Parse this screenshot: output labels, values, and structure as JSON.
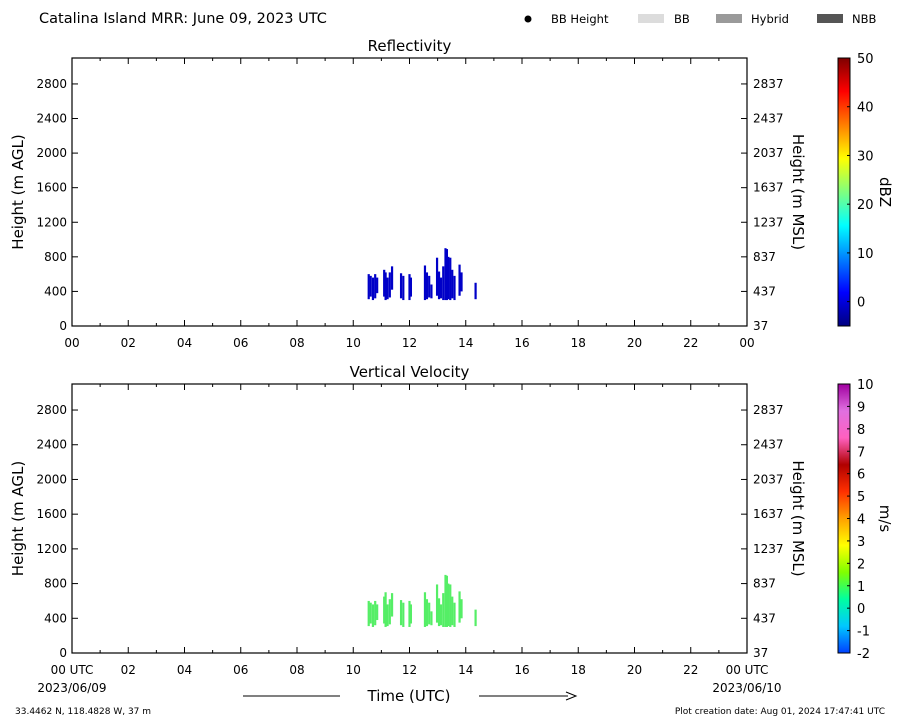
{
  "header": {
    "title": "Catalina Island MRR:  June 09, 2023 UTC",
    "legend": [
      {
        "label": "BB Height",
        "kind": "dot",
        "color": "#000000"
      },
      {
        "label": "BB",
        "kind": "swatch",
        "color": "#dcdcdc"
      },
      {
        "label": "Hybrid",
        "kind": "swatch",
        "color": "#9a9a9a"
      },
      {
        "label": "NBB",
        "kind": "swatch",
        "color": "#555555"
      }
    ]
  },
  "footer": {
    "location": "33.4462 N, 118.4828 W, 37 m",
    "creation": "Plot creation date: Aug 01, 2024 17:47:41 UTC",
    "xlabel": "Time (UTC)",
    "start_date": "2023/06/09",
    "end_date": "2023/06/10"
  },
  "chart_data": [
    {
      "type": "heatmap",
      "title": "Reflectivity",
      "ylabel": "Height (m AGL)",
      "ylabel_right": "Height (m MSL)",
      "x_ticks": [
        "00",
        "02",
        "04",
        "06",
        "08",
        "10",
        "12",
        "14",
        "16",
        "18",
        "20",
        "22",
        "00"
      ],
      "xlim": [
        0,
        24
      ],
      "ylim": [
        0,
        3100
      ],
      "y_ticks": [
        0,
        400,
        800,
        1200,
        1600,
        2000,
        2400,
        2800
      ],
      "y_ticks_right": [
        "37",
        "437",
        "837",
        "1237",
        "1637",
        "2037",
        "2437",
        "2837"
      ],
      "colorbar": {
        "label": "dBZ",
        "range": [
          -5,
          50
        ],
        "ticks": [
          "0",
          "10",
          "20",
          "30",
          "40",
          "50"
        ],
        "tick_values": [
          0,
          10,
          20,
          30,
          40,
          50
        ],
        "stops": [
          "#00007f",
          "#0000ff",
          "#007fff",
          "#00ffff",
          "#7fff7f",
          "#ffff00",
          "#ff7f00",
          "#ff0000",
          "#7f0000"
        ]
      },
      "echo_color": "#0000c8",
      "echoes": [
        [
          10.55,
          310,
          600
        ],
        [
          10.62,
          340,
          580
        ],
        [
          10.7,
          300,
          560
        ],
        [
          10.78,
          320,
          600
        ],
        [
          10.85,
          380,
          560
        ],
        [
          11.1,
          340,
          650
        ],
        [
          11.15,
          300,
          620
        ],
        [
          11.22,
          310,
          560
        ],
        [
          11.3,
          330,
          620
        ],
        [
          11.38,
          420,
          690
        ],
        [
          11.7,
          320,
          610
        ],
        [
          11.78,
          300,
          580
        ],
        [
          12.0,
          300,
          600
        ],
        [
          12.05,
          340,
          560
        ],
        [
          12.55,
          300,
          700
        ],
        [
          12.62,
          310,
          620
        ],
        [
          12.7,
          330,
          580
        ],
        [
          12.78,
          320,
          480
        ],
        [
          12.98,
          350,
          790
        ],
        [
          13.05,
          310,
          630
        ],
        [
          13.12,
          320,
          560
        ],
        [
          13.2,
          300,
          690
        ],
        [
          13.28,
          300,
          900
        ],
        [
          13.33,
          300,
          890
        ],
        [
          13.38,
          310,
          800
        ],
        [
          13.45,
          300,
          790
        ],
        [
          13.52,
          320,
          650
        ],
        [
          13.6,
          300,
          580
        ],
        [
          13.78,
          350,
          710
        ],
        [
          13.85,
          400,
          620
        ],
        [
          14.35,
          310,
          500
        ]
      ]
    },
    {
      "type": "heatmap",
      "title": "Vertical Velocity",
      "ylabel": "Height (m AGL)",
      "ylabel_right": "Height (m MSL)",
      "x_ticks": [
        "00 UTC",
        "02",
        "04",
        "06",
        "08",
        "10",
        "12",
        "14",
        "16",
        "18",
        "20",
        "22",
        "00 UTC"
      ],
      "xlim": [
        0,
        24
      ],
      "ylim": [
        0,
        3100
      ],
      "y_ticks": [
        0,
        400,
        800,
        1200,
        1600,
        2000,
        2400,
        2800
      ],
      "y_ticks_right": [
        "37",
        "437",
        "837",
        "1237",
        "1637",
        "2037",
        "2437",
        "2837"
      ],
      "colorbar": {
        "label": "m/s",
        "range": [
          -2,
          10
        ],
        "ticks": [
          "-2",
          "-1",
          "0",
          "1",
          "2",
          "3",
          "4",
          "5",
          "6",
          "7",
          "8",
          "9",
          "10"
        ],
        "tick_values": [
          -2,
          -1,
          0,
          1,
          2,
          3,
          4,
          5,
          6,
          7,
          8,
          9,
          10
        ],
        "stops": [
          "#0040ff",
          "#00c8ff",
          "#00ffa0",
          "#80ff00",
          "#ffff00",
          "#ffa000",
          "#ff3000",
          "#b00000",
          "#ff60c0",
          "#e070e0",
          "#a000a0"
        ]
      },
      "echo_color": "#55ee66",
      "echoes": [
        [
          10.55,
          310,
          600
        ],
        [
          10.62,
          340,
          580
        ],
        [
          10.7,
          300,
          560
        ],
        [
          10.78,
          320,
          600
        ],
        [
          10.85,
          380,
          560
        ],
        [
          11.1,
          340,
          650
        ],
        [
          11.15,
          300,
          700
        ],
        [
          11.22,
          310,
          560
        ],
        [
          11.3,
          330,
          620
        ],
        [
          11.38,
          420,
          690
        ],
        [
          11.7,
          320,
          610
        ],
        [
          11.78,
          300,
          580
        ],
        [
          12.0,
          300,
          600
        ],
        [
          12.05,
          340,
          560
        ],
        [
          12.55,
          300,
          700
        ],
        [
          12.62,
          310,
          620
        ],
        [
          12.7,
          330,
          580
        ],
        [
          12.78,
          320,
          480
        ],
        [
          12.98,
          350,
          790
        ],
        [
          13.05,
          310,
          630
        ],
        [
          13.12,
          320,
          560
        ],
        [
          13.2,
          300,
          690
        ],
        [
          13.28,
          300,
          900
        ],
        [
          13.33,
          300,
          890
        ],
        [
          13.38,
          310,
          800
        ],
        [
          13.45,
          300,
          790
        ],
        [
          13.52,
          320,
          650
        ],
        [
          13.6,
          300,
          580
        ],
        [
          13.78,
          350,
          710
        ],
        [
          13.85,
          400,
          620
        ],
        [
          14.35,
          310,
          500
        ]
      ]
    }
  ]
}
